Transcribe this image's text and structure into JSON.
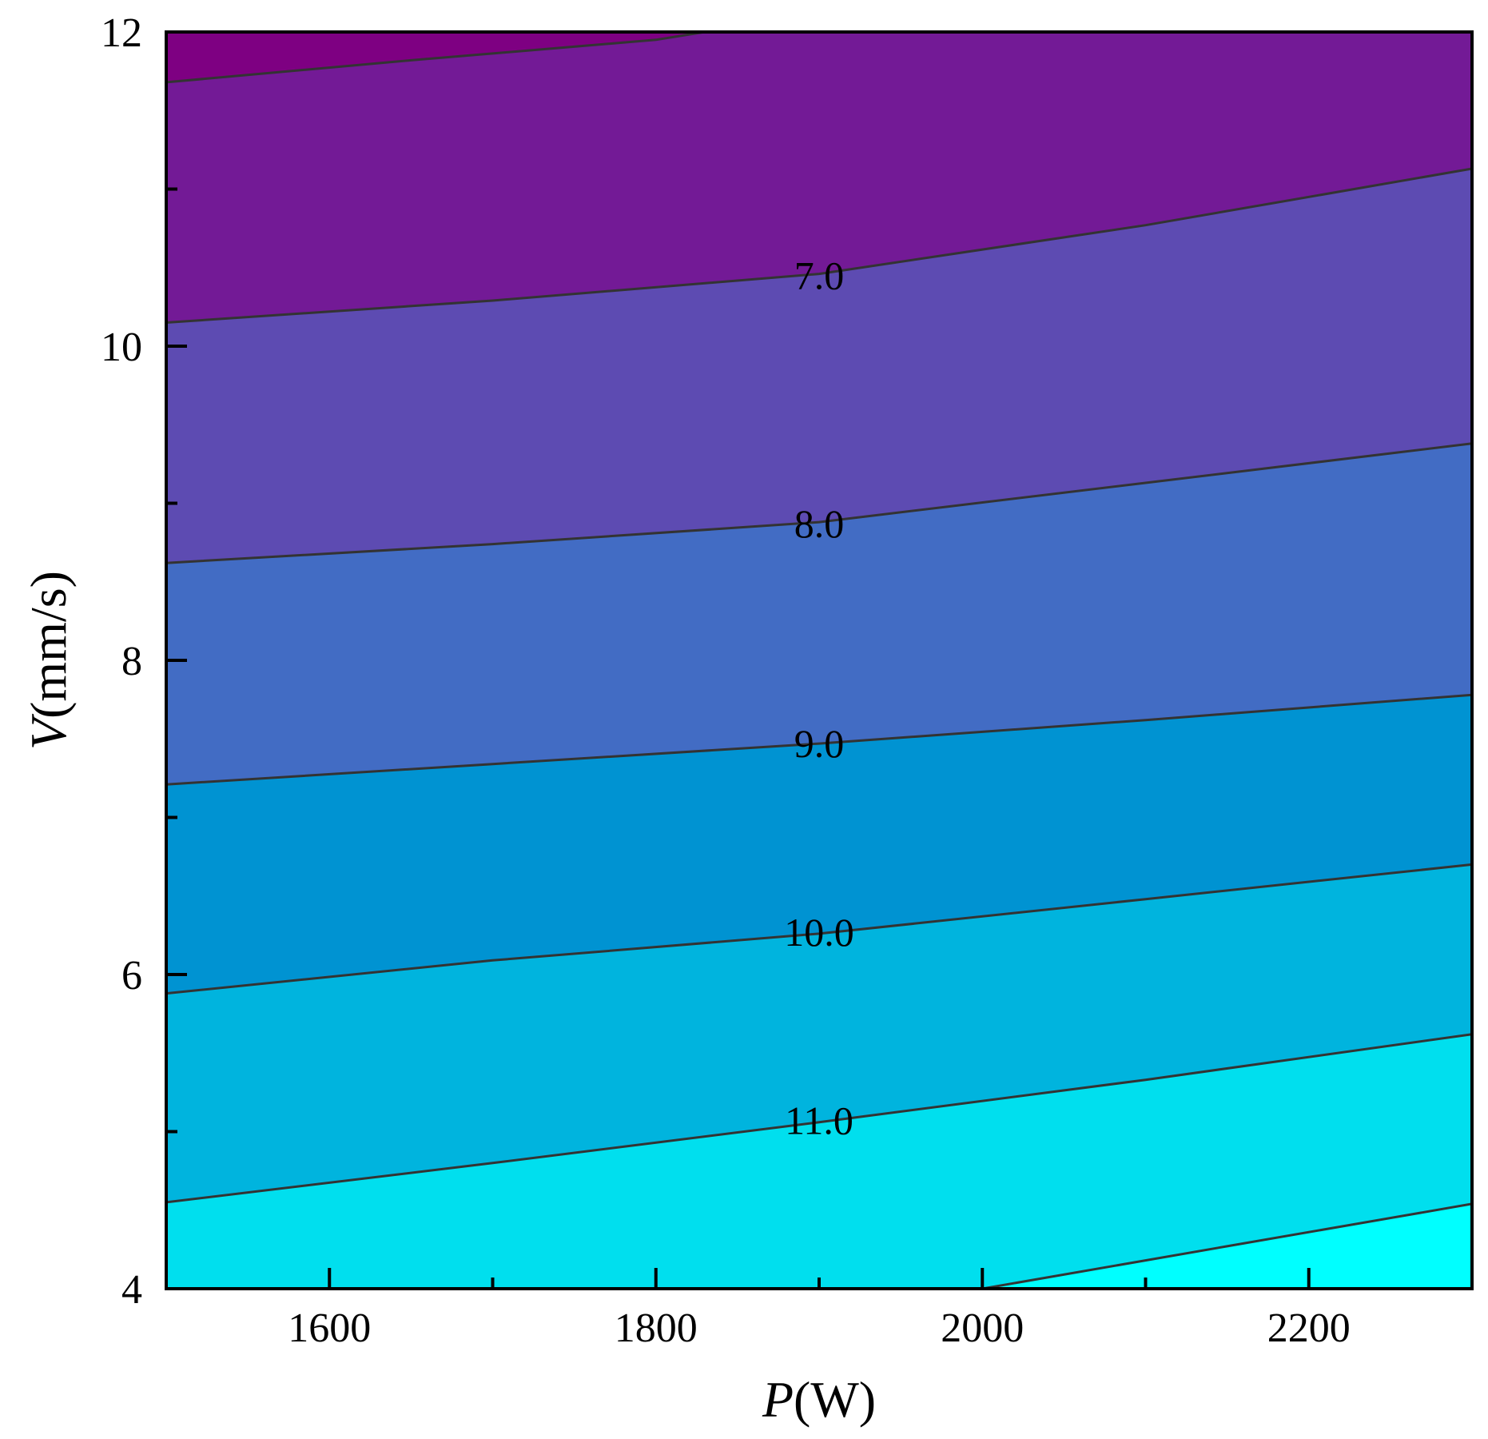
{
  "chart_data": {
    "type": "contour",
    "xlabel": {
      "var": "P",
      "unit": "(W)"
    },
    "ylabel": {
      "var": "V",
      "unit": "(mm/s)"
    },
    "xlim": [
      1500,
      2300
    ],
    "ylim": [
      4,
      12
    ],
    "x_ticks": [
      1600,
      1800,
      2000,
      2200
    ],
    "x_tick_labels": [
      "1600",
      "1800",
      "2000",
      "2200"
    ],
    "x_minor_ticks": [
      1700,
      1900,
      2100
    ],
    "y_ticks": [
      4,
      6,
      8,
      10,
      12
    ],
    "y_tick_labels": [
      "4",
      "6",
      "8",
      "10",
      "12"
    ],
    "y_minor_ticks": [
      5,
      7,
      9,
      11
    ],
    "contour_lines": [
      {
        "level": 6.0,
        "label": "",
        "points": [
          [
            1500,
            11.68
          ],
          [
            1650,
            11.82
          ],
          [
            1800,
            11.95
          ],
          [
            1830,
            12.0
          ]
        ]
      },
      {
        "level": 7.0,
        "label": "7.0",
        "label_at": [
          1900,
          10.45
        ],
        "points": [
          [
            1500,
            10.15
          ],
          [
            1700,
            10.29
          ],
          [
            1900,
            10.46
          ],
          [
            2100,
            10.77
          ],
          [
            2300,
            11.13
          ]
        ]
      },
      {
        "level": 8.0,
        "label": "8.0",
        "label_at": [
          1900,
          8.87
        ],
        "points": [
          [
            1500,
            8.62
          ],
          [
            1700,
            8.74
          ],
          [
            1900,
            8.88
          ],
          [
            2100,
            9.13
          ],
          [
            2300,
            9.38
          ]
        ]
      },
      {
        "level": 9.0,
        "label": "9.0",
        "label_at": [
          1900,
          7.47
        ],
        "points": [
          [
            1500,
            7.21
          ],
          [
            1700,
            7.34
          ],
          [
            1900,
            7.47
          ],
          [
            2100,
            7.62
          ],
          [
            2300,
            7.78
          ]
        ]
      },
      {
        "level": 10.0,
        "label": "10.0",
        "label_at": [
          1900,
          6.27
        ],
        "points": [
          [
            1500,
            5.88
          ],
          [
            1700,
            6.09
          ],
          [
            1900,
            6.26
          ],
          [
            2100,
            6.48
          ],
          [
            2300,
            6.7
          ]
        ]
      },
      {
        "level": 11.0,
        "label": "11.0",
        "label_at": [
          1900,
          5.07
        ],
        "points": [
          [
            1500,
            4.55
          ],
          [
            1700,
            4.8
          ],
          [
            1900,
            5.06
          ],
          [
            2100,
            5.33
          ],
          [
            2300,
            5.62
          ]
        ]
      },
      {
        "level": 12.0,
        "label": "",
        "points": [
          [
            2000,
            4.0
          ],
          [
            2150,
            4.27
          ],
          [
            2300,
            4.54
          ]
        ]
      }
    ],
    "fill_colors": [
      "#7e0082",
      "#731a96",
      "#5d4bb2",
      "#426cc4",
      "#0093d2",
      "#00b4de",
      "#00dfee",
      "#00ffff"
    ]
  }
}
